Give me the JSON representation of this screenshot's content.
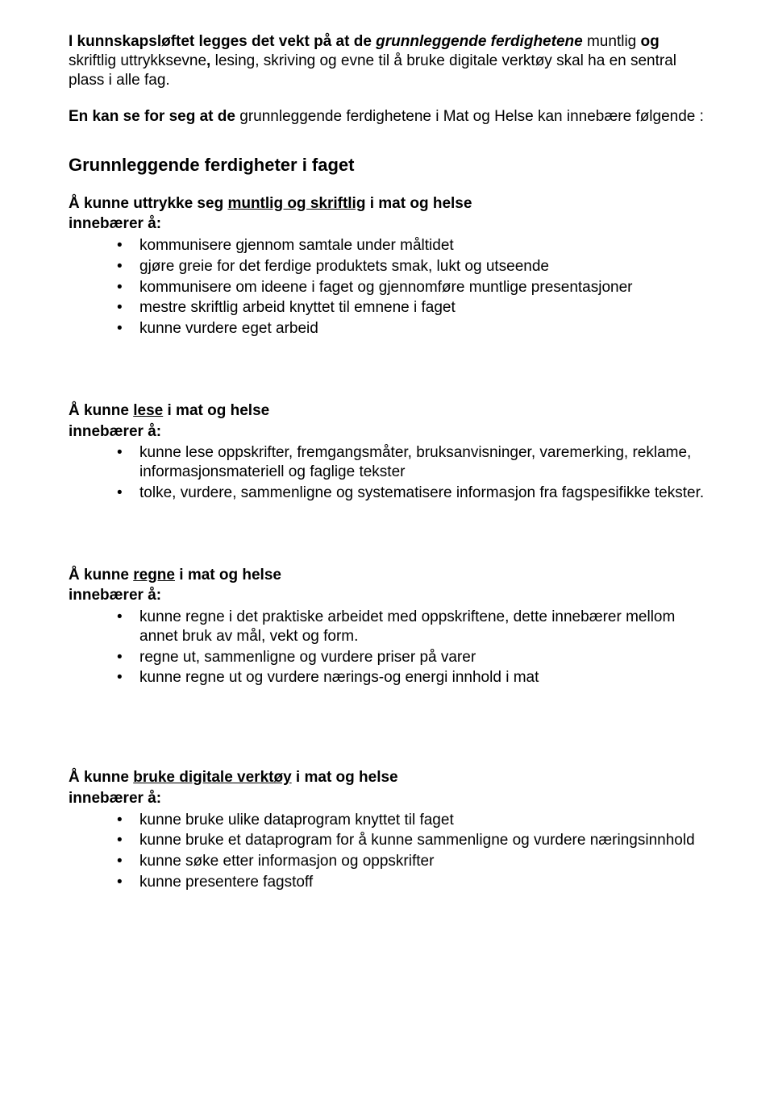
{
  "intro": {
    "p1_a": "I kunnskapsløftet legges det vekt på at de ",
    "p1_b": "grunnleggende ferdighetene",
    "p1_c": " muntlig ",
    "p1_d": "og",
    "p1_e": " skriftlig uttrykksevne",
    "p1_f": ", ",
    "p1_g": "lesing, skriving og evne til å bruke digitale verktøy skal ha en sentral plass i alle fag.",
    "p2_a": "En kan se for seg at de ",
    "p2_b": "grunnleggende ferdighetene  i Mat og Helse kan innebære følgende :"
  },
  "sectionTitle": "Grunnleggende ferdigheter i faget",
  "innebaerer": "innebærer å:",
  "s1": {
    "h_a": "Å kunne uttrykke seg ",
    "h_b": "muntlig og skriftlig",
    "h_c": " i mat og helse",
    "b1": "kommunisere gjennom samtale under måltidet",
    "b2": "gjøre greie for det ferdige produktets smak, lukt og utseende",
    "b3": "kommunisere om ideene i faget og gjennomføre muntlige presentasjoner",
    "b4": "mestre skriftlig arbeid knyttet til emnene i faget",
    "b5": "kunne vurdere eget arbeid"
  },
  "s2": {
    "h_a": "Å kunne ",
    "h_b": "lese",
    "h_c": " i mat og helse",
    "b1": "kunne lese oppskrifter, fremgangsmåter, bruksanvisninger, varemerking, reklame, informasjonsmateriell og faglige tekster",
    "b2": " tolke, vurdere, sammenligne og systematisere informasjon fra  fagspesifikke tekster."
  },
  "s3": {
    "h_a": "Å kunne  ",
    "h_b": "regne",
    "h_c": " i mat og helse",
    "b1": "kunne regne i det praktiske arbeidet med oppskriftene, dette innebærer mellom annet bruk av mål, vekt og form.",
    "b2": "regne ut, sammenligne og vurdere priser på varer",
    "b3": "kunne regne ut og vurdere nærings-og energi innhold i mat"
  },
  "s4": {
    "h_a": "Å kunne ",
    "h_b": "bruke digitale verktøy",
    "h_c": " i mat og helse",
    "b1": "kunne bruke ulike dataprogram knyttet til faget",
    "b2": "kunne bruke et dataprogram for å kunne sammenligne og vurdere  næringsinnhold",
    "b3": "kunne søke etter informasjon og oppskrifter",
    "b4": "kunne presentere fagstoff"
  }
}
